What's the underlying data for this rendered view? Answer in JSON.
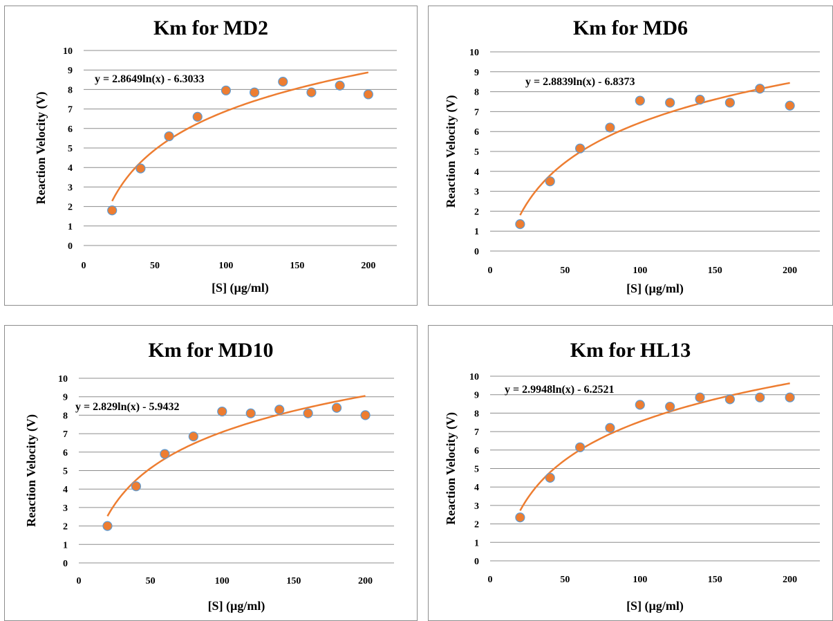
{
  "chart_data": [
    {
      "type": "scatter",
      "title": "Km for MD2",
      "xlabel": "[S] (µg/ml)",
      "ylabel": "Reaction Velocity (V)",
      "xlim": [
        0,
        220
      ],
      "ylim": [
        0,
        10
      ],
      "xticks": [
        0,
        50,
        100,
        150,
        200
      ],
      "yticks": [
        0,
        1,
        2,
        3,
        4,
        5,
        6,
        7,
        8,
        9,
        10
      ],
      "grid": true,
      "points": {
        "x": [
          20,
          40,
          60,
          80,
          100,
          120,
          140,
          160,
          180,
          200
        ],
        "y": [
          1.8,
          3.95,
          5.6,
          6.6,
          7.95,
          7.85,
          8.4,
          7.85,
          8.2,
          7.75
        ]
      },
      "trendline": {
        "type": "logarithmic",
        "a": 2.8649,
        "b": -6.3033,
        "x_range": [
          20,
          200
        ],
        "label": "y = 2.8649ln(x) - 6.3033"
      },
      "colors": {
        "marker_fill": "#ED7D31",
        "marker_edge": "#5B9BD5",
        "trendline": "#ED7D31"
      }
    },
    {
      "type": "scatter",
      "title": "Km for MD6",
      "xlabel": "[S] (µg/ml)",
      "ylabel": "Reaction Velocity (V)",
      "xlim": [
        0,
        220
      ],
      "ylim": [
        0,
        10
      ],
      "xticks": [
        0,
        50,
        100,
        150,
        200
      ],
      "yticks": [
        0,
        1,
        2,
        3,
        4,
        5,
        6,
        7,
        8,
        9,
        10
      ],
      "grid": true,
      "points": {
        "x": [
          20,
          40,
          60,
          80,
          100,
          120,
          140,
          160,
          180,
          200
        ],
        "y": [
          1.35,
          3.5,
          5.15,
          6.2,
          7.55,
          7.45,
          7.6,
          7.45,
          8.15,
          7.3
        ]
      },
      "trendline": {
        "type": "logarithmic",
        "a": 2.8839,
        "b": -6.8373,
        "x_range": [
          20,
          200
        ],
        "label": "y = 2.8839ln(x) - 6.8373"
      },
      "colors": {
        "marker_fill": "#ED7D31",
        "marker_edge": "#5B9BD5",
        "trendline": "#ED7D31"
      }
    },
    {
      "type": "scatter",
      "title": "Km for MD10",
      "xlabel": "[S] (µg/ml)",
      "ylabel": "Reaction Velocity (V)",
      "xlim": [
        0,
        220
      ],
      "ylim": [
        0,
        10
      ],
      "xticks": [
        0,
        50,
        100,
        150,
        200
      ],
      "yticks": [
        0,
        1,
        2,
        3,
        4,
        5,
        6,
        7,
        8,
        9,
        10
      ],
      "grid": true,
      "points": {
        "x": [
          20,
          40,
          60,
          80,
          100,
          120,
          140,
          160,
          180,
          200
        ],
        "y": [
          2.0,
          4.15,
          5.9,
          6.85,
          8.2,
          8.1,
          8.3,
          8.1,
          8.4,
          8.0
        ]
      },
      "trendline": {
        "type": "logarithmic",
        "a": 2.829,
        "b": -5.9432,
        "x_range": [
          20,
          200
        ],
        "label": "y = 2.829ln(x) - 5.9432"
      },
      "colors": {
        "marker_fill": "#ED7D31",
        "marker_edge": "#5B9BD5",
        "trendline": "#ED7D31"
      }
    },
    {
      "type": "scatter",
      "title": "Km for HL13",
      "xlabel": "[S] (µg/ml)",
      "ylabel": "Reaction Velocity (V)",
      "xlim": [
        0,
        220
      ],
      "ylim": [
        0,
        10
      ],
      "xticks": [
        0,
        50,
        100,
        150,
        200
      ],
      "yticks": [
        0,
        1,
        2,
        3,
        4,
        5,
        6,
        7,
        8,
        9,
        10
      ],
      "grid": true,
      "points": {
        "x": [
          20,
          40,
          60,
          80,
          100,
          120,
          140,
          160,
          180,
          200
        ],
        "y": [
          2.35,
          4.5,
          6.15,
          7.2,
          8.45,
          8.35,
          8.85,
          8.75,
          8.85,
          8.85
        ]
      },
      "trendline": {
        "type": "logarithmic",
        "a": 2.9948,
        "b": -6.2521,
        "x_range": [
          20,
          200
        ],
        "label": "y = 2.9948ln(x) - 6.2521"
      },
      "colors": {
        "marker_fill": "#ED7D31",
        "marker_edge": "#5B9BD5",
        "trendline": "#ED7D31"
      }
    }
  ]
}
